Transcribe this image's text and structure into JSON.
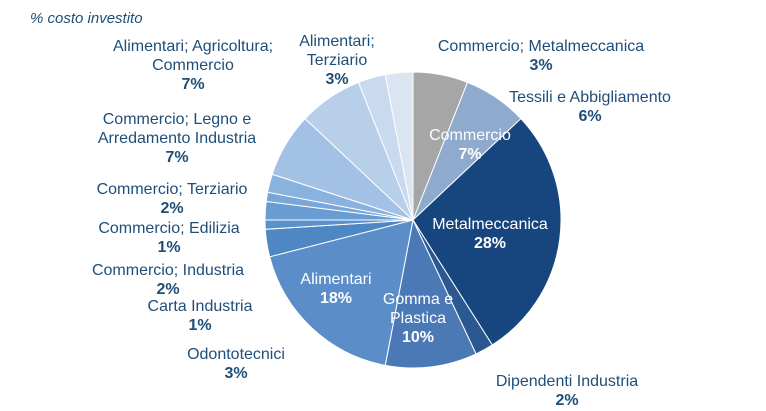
{
  "chart_data": {
    "type": "pie",
    "subtitle": "% costo investito",
    "categories": [
      "Tessili e Abbigliamento",
      "Commercio",
      "Metalmeccanica",
      "Dipendenti Industria",
      "Gomma e Plastica",
      "Alimentari",
      "Odontotecnici",
      "Carta Industria",
      "Commercio; Industria",
      "Commercio; Edilizia",
      "Commercio; Terziario",
      "Commercio; Legno e Arredamento Industria",
      "Alimentari; Agricoltura; Commercio",
      "Alimentari; Terziario",
      "Commercio; Metalmeccanica"
    ],
    "values": [
      6,
      7,
      28,
      2,
      10,
      18,
      3,
      1,
      2,
      1,
      2,
      7,
      7,
      3,
      3
    ],
    "value_labels": [
      "6%",
      "7%",
      "28%",
      "2%",
      "10%",
      "18%",
      "3%",
      "1%",
      "2%",
      "1%",
      "2%",
      "7%",
      "7%",
      "3%",
      "3%"
    ],
    "colors": [
      "#a6a6a6",
      "#8eaacd",
      "#17467e",
      "#2b5891",
      "#4a79b5",
      "#5b8dc8",
      "#4f86c4",
      "#5a91cc",
      "#6a9cd4",
      "#7aa7da",
      "#8ab2de",
      "#a3c1e4",
      "#b8cfea",
      "#c9daef",
      "#dbe5f2"
    ]
  }
}
